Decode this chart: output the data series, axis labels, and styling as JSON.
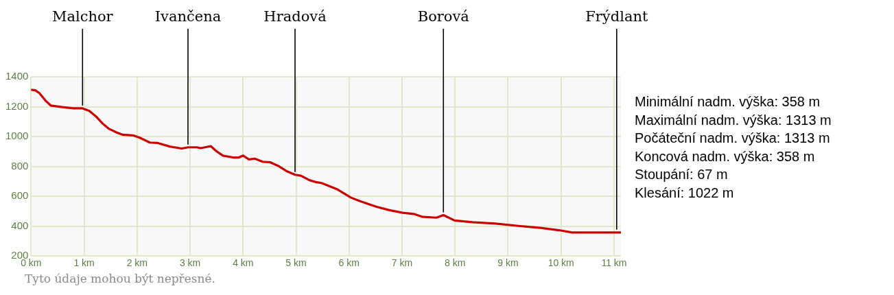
{
  "chart_data": {
    "type": "line",
    "x": [
      0,
      0.08,
      0.16,
      0.27,
      0.37,
      0.59,
      0.8,
      0.97,
      1.1,
      1.22,
      1.35,
      1.46,
      1.61,
      1.73,
      1.92,
      2.05,
      2.24,
      2.39,
      2.62,
      2.84,
      2.96,
      3.13,
      3.2,
      3.39,
      3.49,
      3.62,
      3.81,
      3.92,
      4.0,
      4.11,
      4.22,
      4.37,
      4.51,
      4.66,
      4.83,
      4.98,
      5.09,
      5.26,
      5.39,
      5.48,
      5.77,
      6.03,
      6.2,
      6.5,
      6.75,
      7.01,
      7.22,
      7.39,
      7.65,
      7.78,
      7.99,
      8.33,
      8.76,
      9.19,
      9.61,
      9.96,
      10.21,
      10.46,
      10.72,
      11.13
    ],
    "series": [
      {
        "color": "#cc0000",
        "values": [
          1313,
          1310,
          1290,
          1241,
          1208,
          1197,
          1189,
          1189,
          1171,
          1136,
          1087,
          1054,
          1028,
          1012,
          1008,
          992,
          960,
          957,
          933,
          920,
          928,
          928,
          922,
          936,
          904,
          872,
          860,
          860,
          873,
          847,
          852,
          831,
          828,
          804,
          767,
          744,
          738,
          707,
          694,
          689,
          648,
          592,
          568,
          532,
          508,
          490,
          482,
          462,
          457,
          474,
          438,
          427,
          417,
          402,
          389,
          373,
          358,
          358,
          358,
          358
        ]
      }
    ],
    "xlim": [
      0,
      11.13
    ],
    "xticks": [
      {
        "value": 0,
        "label": "0 km"
      },
      {
        "value": 1,
        "label": "1 km"
      },
      {
        "value": 2,
        "label": "2 km"
      },
      {
        "value": 3,
        "label": "3 km"
      },
      {
        "value": 4,
        "label": "4 km"
      },
      {
        "value": 5,
        "label": "5 km"
      },
      {
        "value": 6,
        "label": "6 km"
      },
      {
        "value": 7,
        "label": "7 km"
      },
      {
        "value": 8,
        "label": "8 km"
      },
      {
        "value": 9,
        "label": "9 km"
      },
      {
        "value": 10,
        "label": "10 km"
      },
      {
        "value": 11,
        "label": "11 km"
      }
    ],
    "ylim": [
      200,
      1400
    ],
    "yticks": [
      200,
      400,
      600,
      800,
      1000,
      1200,
      1400
    ],
    "grid": true,
    "legend": false,
    "marker": "none",
    "line_style": "solid",
    "annotations": [
      {
        "text": "Malchor",
        "x": 0.97,
        "y": 1189
      },
      {
        "text": "Ivančena",
        "x": 2.96,
        "y": 928
      },
      {
        "text": "Hradová",
        "x": 4.98,
        "y": 744
      },
      {
        "text": "Borová",
        "x": 7.78,
        "y": 474
      },
      {
        "text": "Frýdlant",
        "x": 11.05,
        "y": 358
      },
      "Minimální nadm. výška: 358 m",
      "Maximální nadm. výška: 1313 m",
      "Počáteční nadm. výška: 1313 m",
      "Koncová nadm. výška: 358 m",
      "Stoupání: 67 m",
      "Klesání: 1022 m",
      "Tyto údaje mohou být nepřesné."
    ]
  }
}
